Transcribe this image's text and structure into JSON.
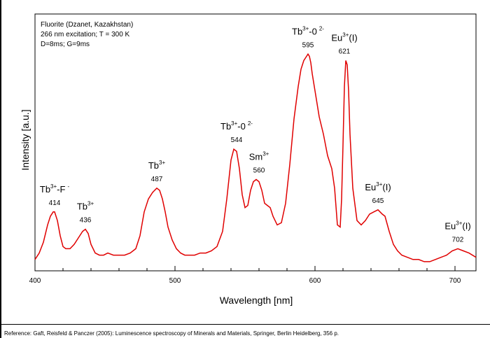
{
  "chart_data": {
    "type": "line",
    "xlabel": "Wavelength [nm]",
    "ylabel": "Intensity [a.u.]",
    "xlim": [
      400,
      715
    ],
    "ylim": [
      0,
      100
    ],
    "x_ticks": [
      "400",
      "500",
      "600",
      "700"
    ],
    "grid": false,
    "info_lines": [
      "Fluorite (Dzanet, Kazakhstan)",
      "266 nm excitation; T = 300 K",
      "D=8ms; G=9ms"
    ],
    "series": [
      {
        "color": "#e00000",
        "x": [
          400,
          403,
          406,
          409,
          411,
          413,
          414,
          416,
          418,
          420,
          422,
          425,
          428,
          431,
          434,
          436,
          438,
          440,
          443,
          446,
          449,
          452,
          456,
          460,
          464,
          468,
          472,
          475,
          478,
          481,
          484,
          487,
          489,
          491,
          493,
          495,
          498,
          501,
          504,
          507,
          510,
          514,
          518,
          522,
          526,
          530,
          534,
          537,
          540,
          542,
          544,
          546,
          548,
          550,
          552,
          554,
          556,
          558,
          560,
          562,
          564,
          566,
          568,
          570,
          573,
          576,
          579,
          582,
          585,
          588,
          590,
          592,
          594,
          595,
          596,
          597,
          598,
          600,
          603,
          606,
          609,
          612,
          614,
          616,
          618,
          619,
          620,
          621,
          622,
          623,
          624,
          625,
          627,
          630,
          633,
          636,
          639,
          642,
          645,
          648,
          650,
          653,
          656,
          659,
          662,
          666,
          670,
          674,
          678,
          682,
          686,
          690,
          694,
          698,
          702,
          706,
          710,
          715
        ],
        "values": [
          2,
          5,
          10,
          18,
          22,
          24,
          24,
          20,
          13,
          8,
          7,
          7,
          9,
          12,
          15,
          16,
          14,
          9,
          5,
          4,
          4,
          5,
          4,
          4,
          4,
          5,
          7,
          13,
          24,
          30,
          33,
          35,
          34,
          30,
          24,
          17,
          11,
          7,
          5,
          4,
          4,
          4,
          5,
          5,
          6,
          8,
          15,
          30,
          48,
          53,
          52,
          44,
          32,
          26,
          27,
          34,
          38,
          39,
          38,
          34,
          28,
          27,
          26,
          22,
          18,
          19,
          28,
          46,
          67,
          82,
          90,
          94,
          96,
          97,
          96,
          93,
          88,
          80,
          68,
          60,
          50,
          44,
          35,
          18,
          17,
          30,
          55,
          82,
          94,
          92,
          80,
          60,
          35,
          20,
          18,
          20,
          23,
          24,
          25,
          23,
          22,
          15,
          9,
          6,
          4,
          3,
          2,
          2,
          1,
          1,
          2,
          3,
          4,
          6,
          7,
          6,
          5,
          3
        ]
      }
    ],
    "annotations": [
      {
        "parts": [
          "Tb",
          "3+",
          "-F",
          "-"
        ],
        "value": "414",
        "x": 414,
        "y": 24
      },
      {
        "parts": [
          "Tb",
          "3+",
          "",
          ""
        ],
        "value": "436",
        "x": 436,
        "y": 16
      },
      {
        "parts": [
          "Tb",
          "3+",
          "",
          ""
        ],
        "value": "487",
        "x": 487,
        "y": 35
      },
      {
        "parts": [
          "Tb",
          "3+",
          "-0",
          "2-"
        ],
        "value": "544",
        "x": 544,
        "y": 53
      },
      {
        "parts": [
          "Sm",
          "3+",
          "",
          ""
        ],
        "value": "560",
        "x": 560,
        "y": 39
      },
      {
        "parts": [
          "Tb",
          "3+",
          "-0",
          "2-"
        ],
        "value": "595",
        "x": 595,
        "y": 97
      },
      {
        "parts": [
          "Eu",
          "3+",
          "(I)",
          ""
        ],
        "value": "621",
        "x": 621,
        "y": 94
      },
      {
        "parts": [
          "Eu",
          "3+",
          "(I)",
          ""
        ],
        "value": "645",
        "x": 645,
        "y": 25
      },
      {
        "parts": [
          "Eu",
          "3+",
          "(I)",
          ""
        ],
        "value": "702",
        "x": 702,
        "y": 7
      }
    ],
    "reference": "Reference: Gaft, Reisfeld & Panczer (2005): Luminescence spectroscopy of Minerals and Materials, Springer, Berlin Heidelberg, 356 p."
  }
}
